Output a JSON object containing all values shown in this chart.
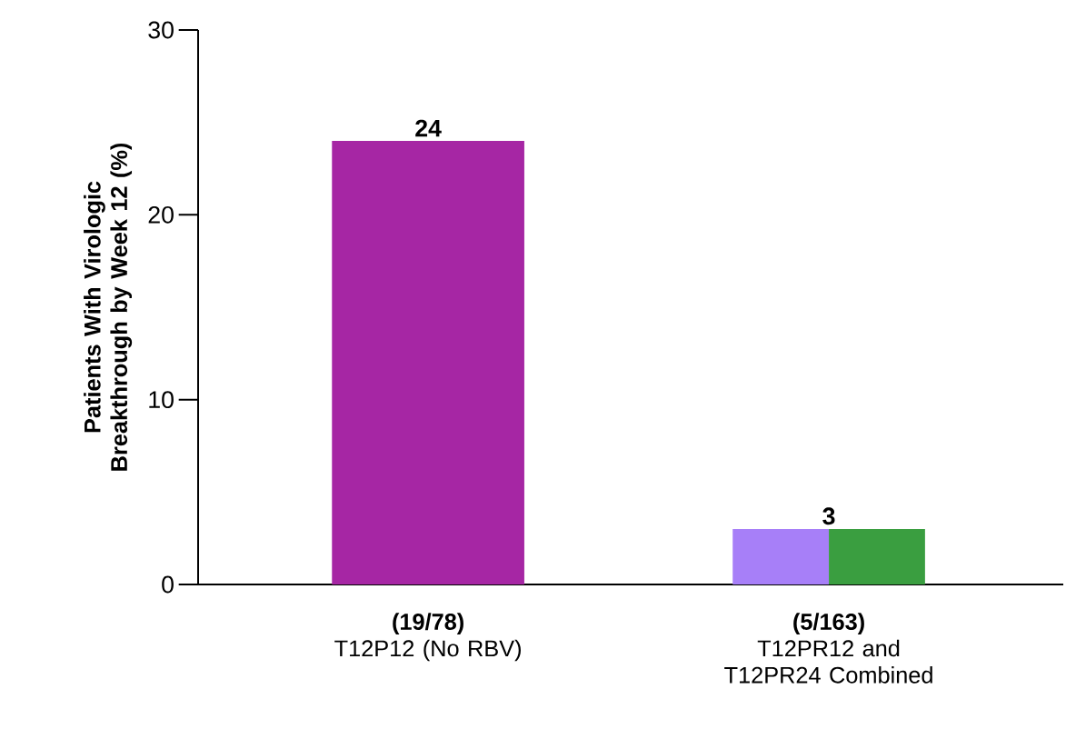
{
  "chart_data": {
    "type": "bar",
    "ylabel": "Patients With Virologic Breakthrough by Week 12 (%)",
    "categories": [
      "T12P12 (No RBV)",
      "T12PR12 and T12PR24 Combined"
    ],
    "series": [
      {
        "color": "#a626a4",
        "values": [
          24,
          null
        ],
        "value_labels": [
          "24",
          null
        ]
      },
      {
        "color": "#a77ff8",
        "values": [
          null,
          3
        ],
        "value_labels": [
          null,
          "3"
        ]
      },
      {
        "color": "#3a9e40",
        "values": [
          null,
          3
        ]
      }
    ],
    "annotations": [
      "(19/78)",
      "(5/163)"
    ],
    "ylim": [
      0,
      30
    ],
    "yticks": [
      0,
      10,
      20,
      30
    ],
    "grid": false
  }
}
